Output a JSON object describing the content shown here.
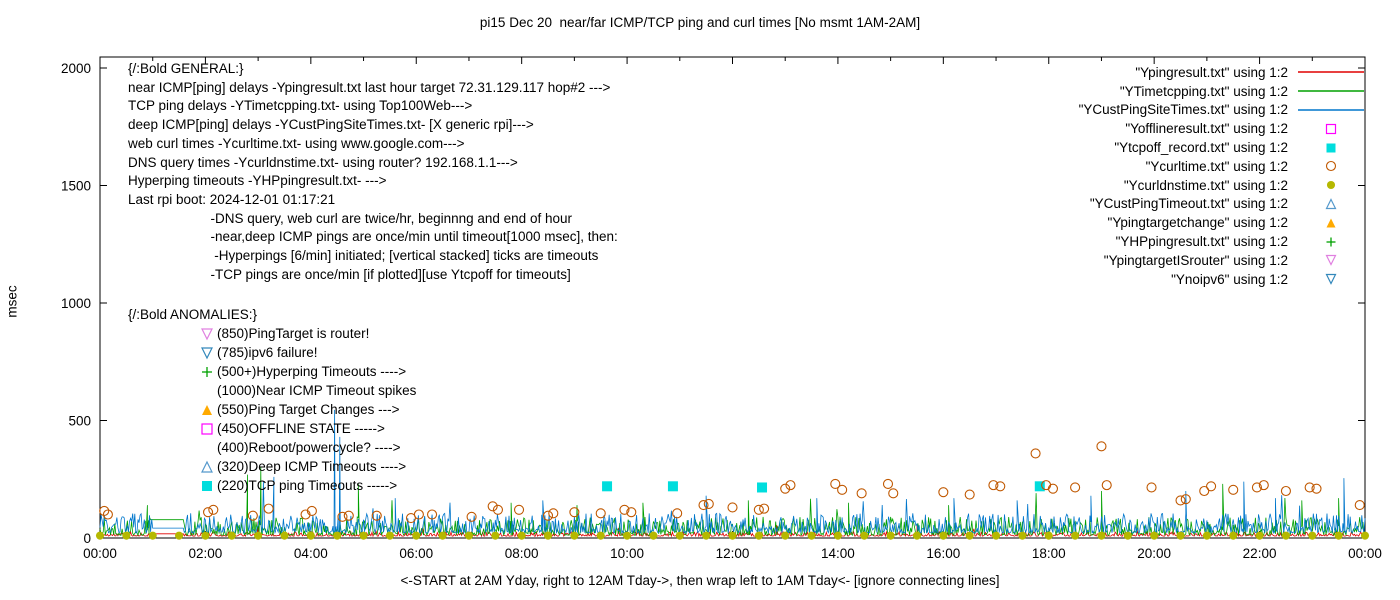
{
  "title": "pi15 Dec 20  near/far ICMP/TCP ping and curl times [No msmt 1AM-2AM]",
  "ylabel": "msec",
  "xlabel": "<-START at 2AM Yday, right to 12AM Tday->, then wrap left to 1AM Tday<- [ignore connecting lines]",
  "general_block": {
    "lines": [
      "{/:Bold GENERAL:}",
      "near ICMP[ping] delays -Ypingresult.txt last hour target 72.31.129.117 hop#2 --->",
      "TCP ping delays -YTimetcpping.txt- using Top100Web--->",
      "deep ICMP[ping] delays -YCustPingSiteTimes.txt- [X generic rpi]--->",
      "web curl times -Ycurltime.txt- using www.google.com--->",
      "DNS query times -Ycurldnstime.txt- using router? 192.168.1.1--->",
      "Hyperping timeouts -YHPpingresult.txt- --->",
      "Last rpi boot: 2024-12-01 01:17:21",
      "                      -DNS query, web curl are twice/hr, beginnng and end of hour",
      "                      -near,deep ICMP pings are once/min until timeout[1000 msec], then:",
      "                       -Hyperpings [6/min] initiated; [vertical stacked] ticks are timeouts",
      "                      -TCP pings are once/min [if plotted][use Ytcpoff for timeouts]"
    ]
  },
  "anomalies_block": {
    "title": "{/:Bold ANOMALIES:}",
    "items": [
      {
        "marker": "triangle-down-open",
        "color": "#e080e0",
        "text": "(850)PingTarget is router!"
      },
      {
        "marker": "triangle-down-open",
        "color": "#3388bb",
        "text": "(785)ipv6 failure!"
      },
      {
        "marker": "plus",
        "color": "#00a000",
        "text": "(500+)Hyperping Timeouts ---->"
      },
      {
        "marker": null,
        "color": null,
        "text": "(1000)Near ICMP Timeout spikes"
      },
      {
        "marker": "triangle-up-filled",
        "color": "#ffaa00",
        "text": "(550)Ping Target Changes --->"
      },
      {
        "marker": "square-open",
        "color": "#ff00ff",
        "text": "(450)OFFLINE STATE ----->"
      },
      {
        "marker": null,
        "color": null,
        "text": "(400)Reboot/powercycle? ---->"
      },
      {
        "marker": "triangle-up-open",
        "color": "#5599cc",
        "text": "(320)Deep ICMP Timeouts ---->"
      },
      {
        "marker": "square-filled",
        "color": "#00dddd",
        "text": "(220)TCP ping Timeouts ----->"
      }
    ]
  },
  "legend": {
    "entries": [
      {
        "label": "\"Ypingresult.txt\" using 1:2",
        "sample": "line",
        "color": "#e00000"
      },
      {
        "label": "\"YTimetcpping.txt\" using 1:2",
        "sample": "line",
        "color": "#00a000"
      },
      {
        "label": "\"YCustPingSiteTimes.txt\" using 1:2",
        "sample": "line",
        "color": "#0077cc"
      },
      {
        "label": "\"Yofflineresult.txt\" using 1:2",
        "sample": "square-open",
        "color": "#ff00ff"
      },
      {
        "label": "\"Ytcpoff_record.txt\" using 1:2",
        "sample": "square-filled",
        "color": "#00dddd"
      },
      {
        "label": "\"Ycurltime.txt\" using 1:2",
        "sample": "circle-open",
        "color": "#c05800"
      },
      {
        "label": "\"Ycurldnstime.txt\" using 1:2",
        "sample": "circle-filled",
        "color": "#b5b800"
      },
      {
        "label": "\"YCustPingTimeout.txt\" using 1:2",
        "sample": "triangle-up-open",
        "color": "#5599cc"
      },
      {
        "label": "\"Ypingtargetchange\" using 1:2",
        "sample": "triangle-up-filled",
        "color": "#ffaa00"
      },
      {
        "label": "\"YHPpingresult.txt\" using 1:2",
        "sample": "plus",
        "color": "#00a000"
      },
      {
        "label": "\"YpingtargetISrouter\" using 1:2",
        "sample": "triangle-down-open",
        "color": "#e080e0"
      },
      {
        "label": "\"Ynoipv6\" using 1:2",
        "sample": "triangle-down-open",
        "color": "#3388bb"
      }
    ]
  },
  "chart_data": {
    "type": "line",
    "title": "pi15 Dec 20  near/far ICMP/TCP ping and curl times [No msmt 1AM-2AM]",
    "xlabel": "<-START at 2AM Yday, right to 12AM Tday->, then wrap left to 1AM Tday<- [ignore connecting lines]",
    "ylabel": "msec",
    "xlim": [
      0,
      24
    ],
    "ylim": [
      0,
      2000
    ],
    "grid": false,
    "legend_position": "top-right",
    "x_ticks": [
      {
        "h": 0,
        "label": "00:00"
      },
      {
        "h": 2,
        "label": "02:00"
      },
      {
        "h": 4,
        "label": "04:00"
      },
      {
        "h": 6,
        "label": "06:00"
      },
      {
        "h": 8,
        "label": "08:00"
      },
      {
        "h": 10,
        "label": "10:00"
      },
      {
        "h": 12,
        "label": "12:00"
      },
      {
        "h": 14,
        "label": "14:00"
      },
      {
        "h": 16,
        "label": "16:00"
      },
      {
        "h": 18,
        "label": "18:00"
      },
      {
        "h": 20,
        "label": "20:00"
      },
      {
        "h": 22,
        "label": "22:00"
      },
      {
        "h": 24,
        "label": "00:00"
      }
    ],
    "y_ticks": [
      0,
      500,
      1000,
      1500,
      2000
    ],
    "line_series": [
      {
        "name": "Ypingresult.txt",
        "color": "#e00000",
        "base": [
          8,
          26
        ],
        "seed": 11,
        "flat": [
          {
            "from": 1.0,
            "to": 1.6,
            "value": 18
          }
        ],
        "spikes": [
          [
            3.0,
            70
          ],
          [
            9.3,
            60
          ],
          [
            15.5,
            55
          ]
        ]
      },
      {
        "name": "YTimetcpping.txt",
        "color": "#00a000",
        "base": [
          12,
          90
        ],
        "seed": 22,
        "flat": [
          {
            "from": 0.95,
            "to": 1.6,
            "value": 78
          }
        ],
        "spikes": [
          [
            0.9,
            140
          ],
          [
            2.8,
            270
          ],
          [
            3.05,
            300
          ],
          [
            4.9,
            230
          ],
          [
            7.8,
            150
          ],
          [
            9.05,
            140
          ],
          [
            10.3,
            150
          ],
          [
            12.3,
            160
          ],
          [
            14.2,
            150
          ],
          [
            16.1,
            140
          ],
          [
            19.0,
            200
          ],
          [
            21.3,
            230
          ],
          [
            22.8,
            160
          ],
          [
            23.5,
            170
          ]
        ]
      },
      {
        "name": "YCustPingSiteTimes.txt",
        "color": "#0077cc",
        "base": [
          22,
          105
        ],
        "seed": 33,
        "flat": [
          {
            "from": 1.0,
            "to": 1.6,
            "value": 42
          }
        ],
        "spikes": [
          [
            3.3,
            260
          ],
          [
            4.45,
            545
          ],
          [
            4.55,
            430
          ],
          [
            5.6,
            170
          ],
          [
            8.4,
            160
          ],
          [
            11.5,
            180
          ],
          [
            13.6,
            170
          ],
          [
            16.2,
            170
          ],
          [
            17.4,
            160
          ],
          [
            18.8,
            180
          ],
          [
            20.6,
            200
          ],
          [
            21.7,
            240
          ],
          [
            22.3,
            170
          ],
          [
            23.6,
            255
          ]
        ]
      }
    ],
    "scatter_series": [
      {
        "name": "Ytcpoff_record.txt",
        "marker": "square-filled",
        "color": "#00dddd",
        "size": 10,
        "points": [
          [
            9.62,
            220
          ],
          [
            10.87,
            220
          ],
          [
            12.56,
            215
          ],
          [
            17.83,
            220
          ]
        ]
      },
      {
        "name": "Ycurltime.txt",
        "marker": "circle-open",
        "color": "#c05800",
        "size": 9,
        "points": [
          [
            0.08,
            115
          ],
          [
            0.15,
            100
          ],
          [
            2.05,
            110
          ],
          [
            2.15,
            120
          ],
          [
            2.9,
            95
          ],
          [
            3.2,
            125
          ],
          [
            3.9,
            100
          ],
          [
            4.02,
            115
          ],
          [
            4.6,
            90
          ],
          [
            4.72,
            95
          ],
          [
            5.25,
            95
          ],
          [
            5.9,
            85
          ],
          [
            6.05,
            100
          ],
          [
            6.3,
            100
          ],
          [
            7.05,
            90
          ],
          [
            7.45,
            135
          ],
          [
            7.55,
            120
          ],
          [
            7.95,
            120
          ],
          [
            8.5,
            95
          ],
          [
            8.6,
            105
          ],
          [
            9.0,
            110
          ],
          [
            9.5,
            105
          ],
          [
            9.95,
            120
          ],
          [
            10.08,
            110
          ],
          [
            10.95,
            105
          ],
          [
            11.45,
            140
          ],
          [
            11.55,
            145
          ],
          [
            12.0,
            130
          ],
          [
            12.5,
            120
          ],
          [
            12.6,
            125
          ],
          [
            13.0,
            210
          ],
          [
            13.1,
            225
          ],
          [
            13.95,
            230
          ],
          [
            14.08,
            205
          ],
          [
            14.45,
            190
          ],
          [
            14.95,
            230
          ],
          [
            15.05,
            190
          ],
          [
            16.0,
            195
          ],
          [
            16.5,
            185
          ],
          [
            16.95,
            225
          ],
          [
            17.08,
            220
          ],
          [
            17.75,
            360
          ],
          [
            17.95,
            225
          ],
          [
            18.08,
            210
          ],
          [
            18.5,
            215
          ],
          [
            19.0,
            390
          ],
          [
            19.1,
            225
          ],
          [
            19.95,
            215
          ],
          [
            20.5,
            160
          ],
          [
            20.6,
            165
          ],
          [
            20.95,
            200
          ],
          [
            21.08,
            220
          ],
          [
            21.5,
            205
          ],
          [
            21.95,
            215
          ],
          [
            22.08,
            225
          ],
          [
            22.5,
            200
          ],
          [
            22.95,
            215
          ],
          [
            23.08,
            210
          ],
          [
            23.9,
            140
          ]
        ]
      },
      {
        "name": "Ycurldnstime.txt",
        "marker": "circle-filled",
        "color": "#b5b800",
        "size": 9,
        "uniform": {
          "from": 0,
          "to": 24,
          "step": 0.5,
          "y": 10
        }
      }
    ]
  }
}
